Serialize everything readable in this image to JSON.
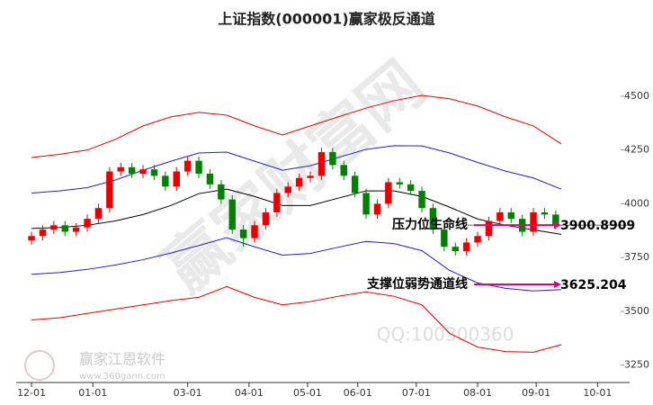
{
  "chart_data": {
    "type": "candlestick",
    "title": "上证指数(000001)赢家极反通道",
    "xlim": [
      -5.5,
      214.5
    ],
    "ylim": [
      3190,
      4780
    ],
    "xticks": [
      {
        "value": 0,
        "label": "12-01"
      },
      {
        "value": 22,
        "label": "01-01"
      },
      {
        "value": 56,
        "label": "03-01"
      },
      {
        "value": 78,
        "label": "04-01"
      },
      {
        "value": 99,
        "label": "05-01"
      },
      {
        "value": 117,
        "label": "06-01"
      },
      {
        "value": 138,
        "label": "07-01"
      },
      {
        "value": 160,
        "label": "08-01"
      },
      {
        "value": 181,
        "label": "09-01"
      },
      {
        "value": 203,
        "label": "10-01"
      }
    ],
    "yticks": [
      3250,
      3500,
      3750,
      4000,
      4250,
      4500
    ],
    "up_color": "#e60000",
    "down_color": "#008000",
    "candles": {
      "x": [
        0,
        4,
        8,
        12,
        16,
        20,
        24,
        28,
        32,
        36,
        40,
        44,
        48,
        52,
        56,
        60,
        64,
        68,
        72,
        76,
        80,
        84,
        88,
        92,
        96,
        100,
        104,
        108,
        112,
        116,
        120,
        124,
        128,
        132,
        136,
        140,
        144,
        148,
        152,
        156,
        160,
        164,
        168,
        172,
        176,
        180,
        184,
        188
      ],
      "open": [
        3830,
        3850,
        3880,
        3900,
        3870,
        3890,
        3930,
        3980,
        4150,
        4170,
        4140,
        4160,
        4130,
        4080,
        4150,
        4200,
        4140,
        4090,
        4020,
        3880,
        3840,
        3900,
        3960,
        4050,
        4080,
        4120,
        4130,
        4240,
        4180,
        4130,
        4050,
        3950,
        4000,
        4100,
        4090,
        4060,
        3980,
        3880,
        3800,
        3780,
        3820,
        3850,
        3920,
        3960,
        3930,
        3870,
        3960,
        3950
      ],
      "high": [
        3870,
        3900,
        3920,
        3920,
        3910,
        3950,
        4000,
        4170,
        4190,
        4190,
        4180,
        4180,
        4150,
        4170,
        4220,
        4220,
        4160,
        4110,
        4040,
        3900,
        3920,
        3980,
        4070,
        4100,
        4140,
        4150,
        4260,
        4260,
        4200,
        4150,
        4070,
        4020,
        4120,
        4120,
        4110,
        4080,
        4000,
        3900,
        3820,
        3840,
        3870,
        3940,
        3980,
        3980,
        3950,
        3980,
        3980,
        3970
      ],
      "low": [
        3810,
        3830,
        3860,
        3850,
        3850,
        3870,
        3910,
        3960,
        4130,
        4120,
        4120,
        4110,
        4060,
        4060,
        4130,
        4120,
        4070,
        4000,
        3860,
        3800,
        3820,
        3880,
        3940,
        4030,
        4060,
        4100,
        4110,
        4160,
        4110,
        4030,
        3930,
        3930,
        3980,
        4070,
        4040,
        3960,
        3860,
        3780,
        3760,
        3760,
        3800,
        3830,
        3900,
        3910,
        3850,
        3850,
        3930,
        3880
      ],
      "close": [
        3850,
        3880,
        3900,
        3870,
        3890,
        3930,
        3980,
        4150,
        4170,
        4140,
        4160,
        4130,
        4080,
        4150,
        4200,
        4140,
        4090,
        4020,
        3880,
        3840,
        3900,
        3960,
        4050,
        4080,
        4120,
        4130,
        4240,
        4180,
        4130,
        4050,
        3950,
        4000,
        4100,
        4090,
        4060,
        3980,
        3880,
        3800,
        3780,
        3820,
        3850,
        3920,
        3960,
        3930,
        3870,
        3960,
        3950,
        3900
      ]
    },
    "channel_x": [
      0,
      10,
      20,
      30,
      40,
      50,
      60,
      70,
      80,
      90,
      100,
      110,
      120,
      130,
      140,
      150,
      160,
      170,
      180,
      190
    ],
    "series": [
      {
        "color": "#e60000",
        "values": [
          4215,
          4230,
          4250,
          4299,
          4362,
          4404,
          4425,
          4412,
          4362,
          4320,
          4362,
          4404,
          4445,
          4479,
          4504,
          4488,
          4454,
          4404,
          4362,
          4278
        ]
      },
      {
        "color": "#2020d0",
        "values": [
          4050,
          4060,
          4075,
          4110,
          4156,
          4198,
          4236,
          4240,
          4198,
          4156,
          4177,
          4215,
          4253,
          4270,
          4269,
          4236,
          4192,
          4152,
          4120,
          4068
        ]
      },
      {
        "color": "#000000",
        "values": [
          3885,
          3890,
          3900,
          3920,
          3950,
          3992,
          4047,
          4068,
          4034,
          3992,
          3992,
          4026,
          4060,
          4060,
          4034,
          3984,
          3929,
          3900,
          3879,
          3858
        ]
      },
      {
        "color": "#2020d0",
        "values": [
          3672,
          3680,
          3695,
          3715,
          3740,
          3771,
          3806,
          3842,
          3800,
          3761,
          3769,
          3798,
          3825,
          3815,
          3782,
          3690,
          3632,
          3607,
          3595,
          3601
        ]
      },
      {
        "color": "#e60000",
        "values": [
          3460,
          3470,
          3490,
          3510,
          3530,
          3550,
          3565,
          3615,
          3565,
          3530,
          3545,
          3570,
          3590,
          3570,
          3530,
          3397,
          3334,
          3313,
          3310,
          3345
        ]
      }
    ],
    "annotations": [
      {
        "text": "压力位生命线",
        "value": 3900.8909,
        "color": "#e0007a"
      },
      {
        "text": "支撑位弱势通道线",
        "value": 3625.204,
        "color": "#e0007a"
      }
    ],
    "watermarks": [
      "赢家财富网",
      "QQ:100300360",
      "赢家江恩软件",
      "www.360gann.com"
    ]
  }
}
